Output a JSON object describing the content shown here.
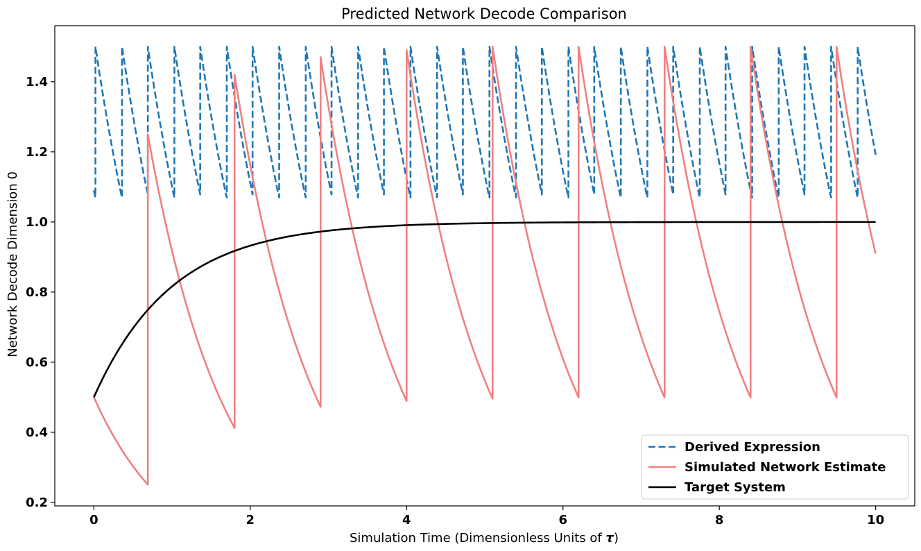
{
  "chart_data": {
    "type": "line",
    "title": "Predicted Network Decode Comparison",
    "xlabel_prefix": "Simulation Time (Dimensionless Units of ",
    "xlabel_symbol": "τ",
    "xlabel_suffix": ")",
    "ylabel": "Network Decode Dimension 0",
    "xlim": [
      -0.5,
      10.5
    ],
    "ylim": [
      0.19,
      1.56
    ],
    "xticks": [
      0,
      2,
      4,
      6,
      8,
      10
    ],
    "xtick_labels": [
      "0",
      "2",
      "4",
      "6",
      "8",
      "10"
    ],
    "yticks": [
      0.2,
      0.4,
      0.6,
      0.8,
      1.0,
      1.2,
      1.4
    ],
    "ytick_labels": [
      "0.2",
      "0.4",
      "0.6",
      "0.8",
      "1.0",
      "1.2",
      "1.4"
    ],
    "grid": false,
    "legend_position": "lower-right",
    "series": [
      {
        "name": "Derived Expression",
        "color": "#1f77b4",
        "style": "dashed",
        "model": "sawtooth",
        "start": 0,
        "end": 10,
        "start_value": 1.09,
        "reset_value": 1.5,
        "resets": [
          0.02,
          0.36,
          0.69,
          1.03,
          1.36,
          1.7,
          2.03,
          2.37,
          2.71,
          3.04,
          3.38,
          3.71,
          4.05,
          4.39,
          4.72,
          5.06,
          5.4,
          5.73,
          6.07,
          6.4,
          6.74,
          7.08,
          7.41,
          7.75,
          8.08,
          8.42,
          8.76,
          9.09,
          9.43,
          9.77
        ],
        "decay_rate": 1.0,
        "lower_bound": 1.07
      },
      {
        "name": "Simulated Network Estimate",
        "color": "#f08080",
        "style": "solid",
        "model": "sawtooth",
        "start": 0,
        "end": 10,
        "start_value": 0.5,
        "resets": [
          0.69,
          1.8,
          2.9,
          4.0,
          5.1,
          6.2,
          7.3,
          8.4,
          9.5
        ],
        "reset_values": [
          1.25,
          1.42,
          1.47,
          1.49,
          1.5,
          1.5,
          1.5,
          1.5,
          1.5
        ],
        "decay_rate": 1.0
      },
      {
        "name": "Target System",
        "color": "#000000",
        "style": "solid",
        "model": "exp_approach",
        "start": 0,
        "end": 10,
        "start_value": 0.5,
        "asymptote": 1.0,
        "rate": 1.0
      }
    ]
  }
}
